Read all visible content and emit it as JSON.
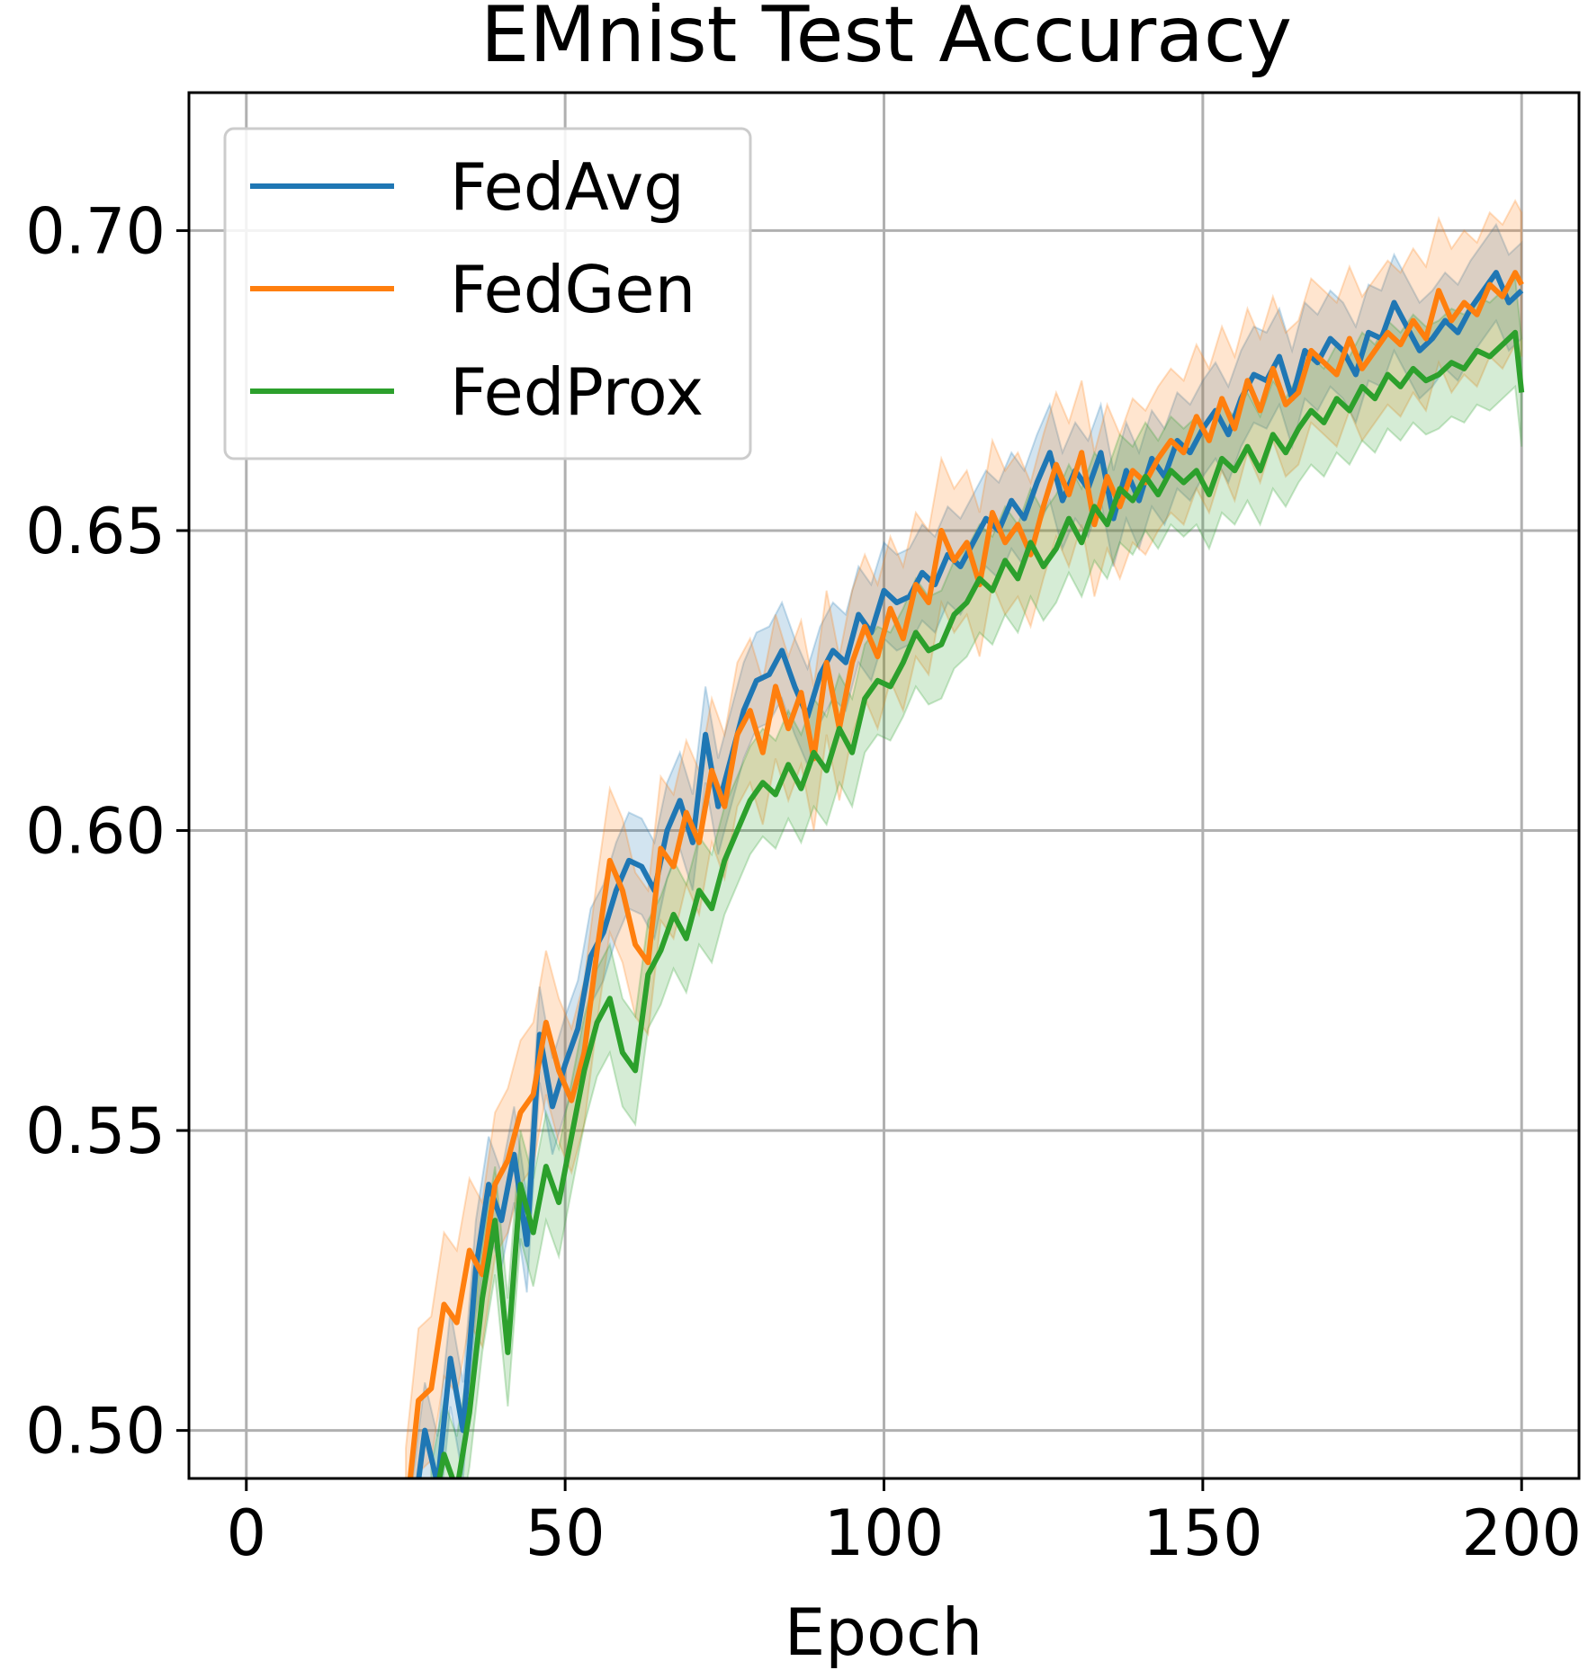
{
  "chart_data": {
    "type": "line",
    "title": "EMnist Test Accuracy",
    "xlabel": "Epoch",
    "ylabel": "",
    "xlim": [
      -9,
      209
    ],
    "ylim": [
      0.492,
      0.723
    ],
    "xticks": [
      0,
      50,
      100,
      150,
      200
    ],
    "xtick_labels": [
      "0",
      "50",
      "100",
      "150",
      "200"
    ],
    "yticks": [
      0.5,
      0.55,
      0.6,
      0.65,
      0.7
    ],
    "ytick_labels": [
      "0.50",
      "0.55",
      "0.60",
      "0.65",
      "0.70"
    ],
    "grid": true,
    "legend_position": "top-left",
    "band_note": "shaded band around each line is the run-to-run spread",
    "series": [
      {
        "name": "FedAvg",
        "color": "#1f77b4",
        "band_half_width": 0.008,
        "points": [
          [
            25,
            0.475
          ],
          [
            28,
            0.5
          ],
          [
            30,
            0.491
          ],
          [
            32,
            0.512
          ],
          [
            34,
            0.5
          ],
          [
            36,
            0.527
          ],
          [
            38,
            0.541
          ],
          [
            40,
            0.535
          ],
          [
            42,
            0.546
          ],
          [
            44,
            0.531
          ],
          [
            46,
            0.566
          ],
          [
            48,
            0.554
          ],
          [
            50,
            0.561
          ],
          [
            52,
            0.567
          ],
          [
            54,
            0.579
          ],
          [
            56,
            0.583
          ],
          [
            58,
            0.59
          ],
          [
            60,
            0.595
          ],
          [
            62,
            0.594
          ],
          [
            64,
            0.59
          ],
          [
            66,
            0.6
          ],
          [
            68,
            0.605
          ],
          [
            70,
            0.598
          ],
          [
            72,
            0.616
          ],
          [
            74,
            0.604
          ],
          [
            76,
            0.612
          ],
          [
            78,
            0.62
          ],
          [
            80,
            0.625
          ],
          [
            82,
            0.626
          ],
          [
            84,
            0.63
          ],
          [
            86,
            0.624
          ],
          [
            88,
            0.619
          ],
          [
            90,
            0.626
          ],
          [
            92,
            0.63
          ],
          [
            94,
            0.628
          ],
          [
            96,
            0.636
          ],
          [
            98,
            0.633
          ],
          [
            100,
            0.64
          ],
          [
            102,
            0.638
          ],
          [
            104,
            0.639
          ],
          [
            106,
            0.643
          ],
          [
            108,
            0.641
          ],
          [
            110,
            0.646
          ],
          [
            112,
            0.644
          ],
          [
            114,
            0.648
          ],
          [
            116,
            0.652
          ],
          [
            118,
            0.65
          ],
          [
            120,
            0.655
          ],
          [
            122,
            0.652
          ],
          [
            124,
            0.658
          ],
          [
            126,
            0.663
          ],
          [
            128,
            0.655
          ],
          [
            130,
            0.66
          ],
          [
            132,
            0.657
          ],
          [
            134,
            0.663
          ],
          [
            136,
            0.652
          ],
          [
            138,
            0.66
          ],
          [
            140,
            0.655
          ],
          [
            142,
            0.662
          ],
          [
            144,
            0.659
          ],
          [
            146,
            0.665
          ],
          [
            148,
            0.663
          ],
          [
            150,
            0.667
          ],
          [
            152,
            0.67
          ],
          [
            154,
            0.666
          ],
          [
            156,
            0.672
          ],
          [
            158,
            0.676
          ],
          [
            160,
            0.675
          ],
          [
            162,
            0.679
          ],
          [
            164,
            0.672
          ],
          [
            166,
            0.68
          ],
          [
            168,
            0.678
          ],
          [
            170,
            0.682
          ],
          [
            172,
            0.68
          ],
          [
            174,
            0.676
          ],
          [
            176,
            0.683
          ],
          [
            178,
            0.682
          ],
          [
            180,
            0.688
          ],
          [
            182,
            0.684
          ],
          [
            184,
            0.68
          ],
          [
            186,
            0.682
          ],
          [
            188,
            0.685
          ],
          [
            190,
            0.683
          ],
          [
            192,
            0.687
          ],
          [
            194,
            0.69
          ],
          [
            196,
            0.693
          ],
          [
            198,
            0.688
          ],
          [
            200,
            0.69
          ]
        ]
      },
      {
        "name": "FedGen",
        "color": "#ff7f0e",
        "band_half_width": 0.012,
        "points": [
          [
            25,
            0.485
          ],
          [
            27,
            0.505
          ],
          [
            29,
            0.507
          ],
          [
            31,
            0.521
          ],
          [
            33,
            0.518
          ],
          [
            35,
            0.53
          ],
          [
            37,
            0.526
          ],
          [
            39,
            0.541
          ],
          [
            41,
            0.545
          ],
          [
            43,
            0.553
          ],
          [
            45,
            0.556
          ],
          [
            47,
            0.568
          ],
          [
            49,
            0.56
          ],
          [
            51,
            0.555
          ],
          [
            53,
            0.563
          ],
          [
            55,
            0.58
          ],
          [
            57,
            0.595
          ],
          [
            59,
            0.59
          ],
          [
            61,
            0.581
          ],
          [
            63,
            0.578
          ],
          [
            65,
            0.597
          ],
          [
            67,
            0.594
          ],
          [
            69,
            0.603
          ],
          [
            71,
            0.598
          ],
          [
            73,
            0.61
          ],
          [
            75,
            0.604
          ],
          [
            77,
            0.616
          ],
          [
            79,
            0.62
          ],
          [
            81,
            0.613
          ],
          [
            83,
            0.624
          ],
          [
            85,
            0.617
          ],
          [
            87,
            0.623
          ],
          [
            89,
            0.612
          ],
          [
            91,
            0.628
          ],
          [
            93,
            0.617
          ],
          [
            95,
            0.628
          ],
          [
            97,
            0.634
          ],
          [
            99,
            0.629
          ],
          [
            101,
            0.637
          ],
          [
            103,
            0.632
          ],
          [
            105,
            0.641
          ],
          [
            107,
            0.638
          ],
          [
            109,
            0.65
          ],
          [
            111,
            0.645
          ],
          [
            113,
            0.648
          ],
          [
            115,
            0.641
          ],
          [
            117,
            0.653
          ],
          [
            119,
            0.648
          ],
          [
            121,
            0.651
          ],
          [
            123,
            0.646
          ],
          [
            125,
            0.654
          ],
          [
            127,
            0.661
          ],
          [
            129,
            0.656
          ],
          [
            131,
            0.663
          ],
          [
            133,
            0.651
          ],
          [
            135,
            0.659
          ],
          [
            137,
            0.654
          ],
          [
            139,
            0.66
          ],
          [
            141,
            0.658
          ],
          [
            143,
            0.662
          ],
          [
            145,
            0.665
          ],
          [
            147,
            0.663
          ],
          [
            149,
            0.669
          ],
          [
            151,
            0.665
          ],
          [
            153,
            0.672
          ],
          [
            155,
            0.667
          ],
          [
            157,
            0.675
          ],
          [
            159,
            0.67
          ],
          [
            161,
            0.677
          ],
          [
            163,
            0.671
          ],
          [
            165,
            0.673
          ],
          [
            167,
            0.68
          ],
          [
            169,
            0.678
          ],
          [
            171,
            0.676
          ],
          [
            173,
            0.682
          ],
          [
            175,
            0.677
          ],
          [
            177,
            0.68
          ],
          [
            179,
            0.683
          ],
          [
            181,
            0.681
          ],
          [
            183,
            0.685
          ],
          [
            185,
            0.682
          ],
          [
            187,
            0.69
          ],
          [
            189,
            0.685
          ],
          [
            191,
            0.688
          ],
          [
            193,
            0.686
          ],
          [
            195,
            0.691
          ],
          [
            197,
            0.689
          ],
          [
            199,
            0.693
          ],
          [
            200,
            0.691
          ]
        ]
      },
      {
        "name": "FedProx",
        "color": "#2ca02c",
        "band_half_width": 0.009,
        "points": [
          [
            29,
            0.485
          ],
          [
            31,
            0.496
          ],
          [
            33,
            0.49
          ],
          [
            35,
            0.503
          ],
          [
            37,
            0.522
          ],
          [
            39,
            0.535
          ],
          [
            41,
            0.513
          ],
          [
            43,
            0.541
          ],
          [
            45,
            0.533
          ],
          [
            47,
            0.544
          ],
          [
            49,
            0.538
          ],
          [
            51,
            0.549
          ],
          [
            53,
            0.56
          ],
          [
            55,
            0.568
          ],
          [
            57,
            0.572
          ],
          [
            59,
            0.563
          ],
          [
            61,
            0.56
          ],
          [
            63,
            0.576
          ],
          [
            65,
            0.58
          ],
          [
            67,
            0.586
          ],
          [
            69,
            0.582
          ],
          [
            71,
            0.59
          ],
          [
            73,
            0.587
          ],
          [
            75,
            0.595
          ],
          [
            77,
            0.6
          ],
          [
            79,
            0.605
          ],
          [
            81,
            0.608
          ],
          [
            83,
            0.606
          ],
          [
            85,
            0.611
          ],
          [
            87,
            0.607
          ],
          [
            89,
            0.613
          ],
          [
            91,
            0.61
          ],
          [
            93,
            0.617
          ],
          [
            95,
            0.613
          ],
          [
            97,
            0.622
          ],
          [
            99,
            0.625
          ],
          [
            101,
            0.624
          ],
          [
            103,
            0.628
          ],
          [
            105,
            0.633
          ],
          [
            107,
            0.63
          ],
          [
            109,
            0.631
          ],
          [
            111,
            0.636
          ],
          [
            113,
            0.638
          ],
          [
            115,
            0.642
          ],
          [
            117,
            0.64
          ],
          [
            119,
            0.645
          ],
          [
            121,
            0.642
          ],
          [
            123,
            0.648
          ],
          [
            125,
            0.644
          ],
          [
            127,
            0.647
          ],
          [
            129,
            0.652
          ],
          [
            131,
            0.648
          ],
          [
            133,
            0.654
          ],
          [
            135,
            0.651
          ],
          [
            137,
            0.657
          ],
          [
            139,
            0.655
          ],
          [
            141,
            0.659
          ],
          [
            143,
            0.656
          ],
          [
            145,
            0.66
          ],
          [
            147,
            0.658
          ],
          [
            149,
            0.66
          ],
          [
            151,
            0.656
          ],
          [
            153,
            0.662
          ],
          [
            155,
            0.66
          ],
          [
            157,
            0.664
          ],
          [
            159,
            0.66
          ],
          [
            161,
            0.666
          ],
          [
            163,
            0.663
          ],
          [
            165,
            0.667
          ],
          [
            167,
            0.67
          ],
          [
            169,
            0.668
          ],
          [
            171,
            0.672
          ],
          [
            173,
            0.67
          ],
          [
            175,
            0.674
          ],
          [
            177,
            0.672
          ],
          [
            179,
            0.676
          ],
          [
            181,
            0.674
          ],
          [
            183,
            0.677
          ],
          [
            185,
            0.675
          ],
          [
            187,
            0.676
          ],
          [
            189,
            0.678
          ],
          [
            191,
            0.677
          ],
          [
            193,
            0.68
          ],
          [
            195,
            0.679
          ],
          [
            197,
            0.681
          ],
          [
            199,
            0.683
          ],
          [
            200,
            0.673
          ]
        ]
      }
    ]
  }
}
